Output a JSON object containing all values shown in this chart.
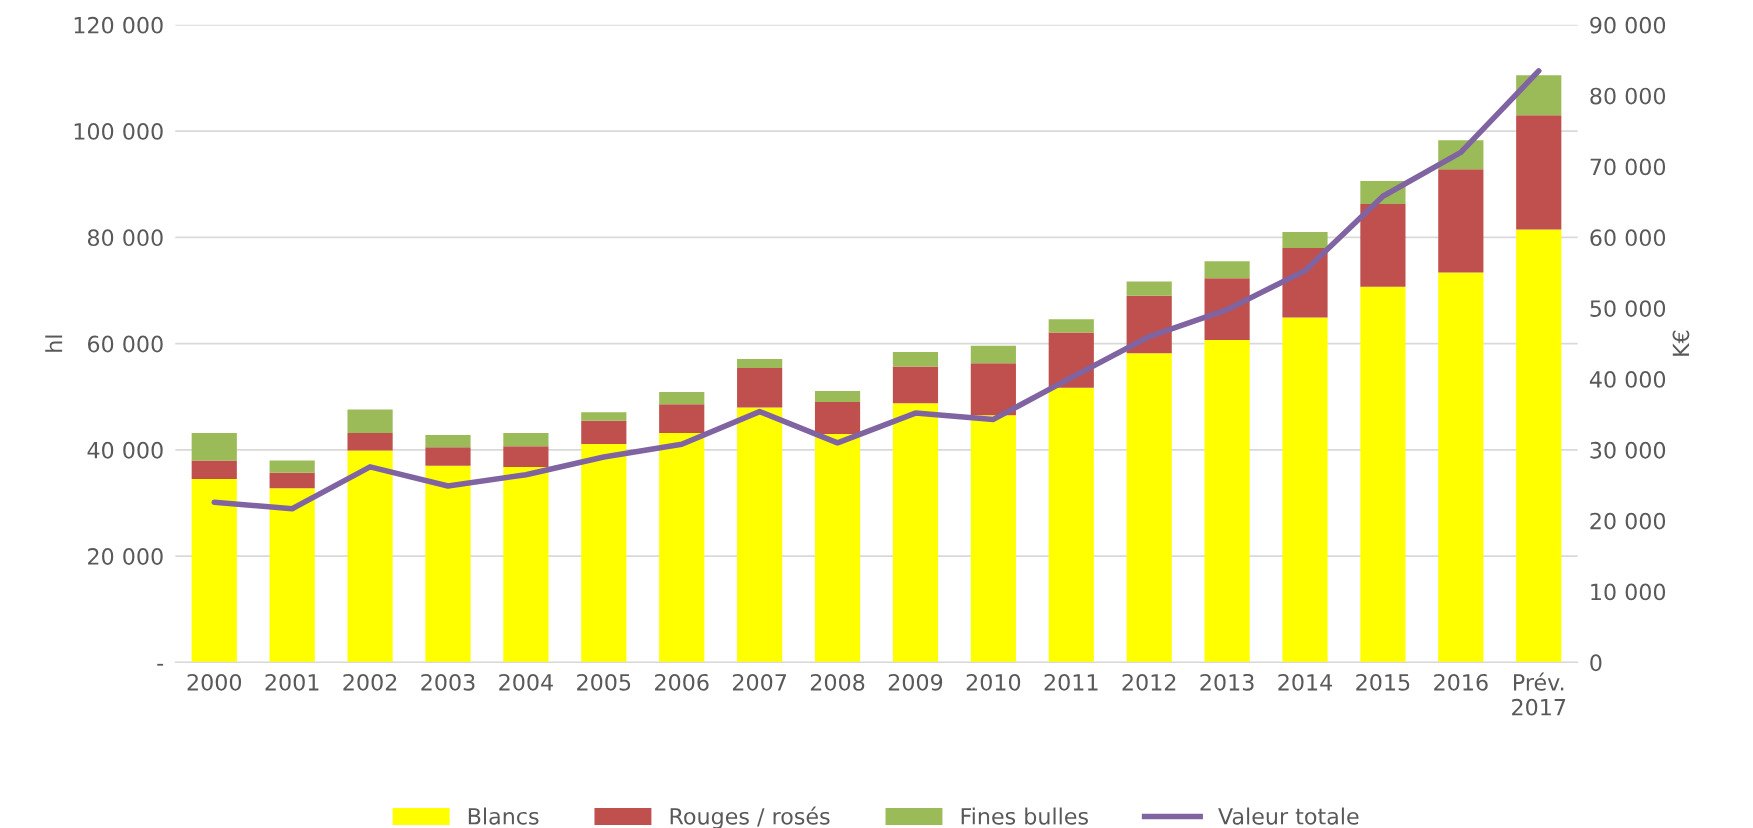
{
  "chart_data": {
    "type": "bar",
    "stacked": true,
    "ylabel": "hl",
    "y2label": "K€",
    "categories": [
      "2000",
      "2001",
      "2002",
      "2003",
      "2004",
      "2005",
      "2006",
      "2007",
      "2008",
      "2009",
      "2010",
      "2011",
      "2012",
      "2013",
      "2014",
      "2015",
      "2016",
      "Prév.\n2017"
    ],
    "series": [
      {
        "name": "Blancs",
        "color": "#ffff00",
        "values": [
          34500,
          32800,
          39900,
          37000,
          36800,
          41100,
          43200,
          48000,
          43000,
          48800,
          46500,
          51700,
          58200,
          60700,
          64900,
          70700,
          73400,
          81500
        ]
      },
      {
        "name": "Rouges / rosés",
        "color": "#c0504d",
        "values": [
          3500,
          2900,
          3300,
          3500,
          3900,
          4400,
          5400,
          7400,
          6000,
          6900,
          9800,
          10400,
          10800,
          11600,
          13100,
          15600,
          19400,
          21500
        ]
      },
      {
        "name": "Fines bulles",
        "color": "#9bbb59",
        "values": [
          5200,
          2300,
          4400,
          2300,
          2500,
          1600,
          2300,
          1700,
          2100,
          2700,
          3300,
          2500,
          2700,
          3200,
          3000,
          4300,
          5500,
          7500
        ]
      },
      {
        "name": "Valeur totale",
        "type": "line",
        "axis": "y2",
        "color": "#8064a2",
        "values": [
          22600,
          21700,
          27600,
          24900,
          26500,
          29000,
          30800,
          35400,
          31000,
          35200,
          34300,
          40200,
          46000,
          49800,
          55300,
          65800,
          72000,
          83500
        ]
      }
    ],
    "ylim": [
      0,
      120000
    ],
    "yticks": [
      {
        "value": 0,
        "label": "-"
      },
      {
        "value": 20000,
        "label": "20 000"
      },
      {
        "value": 40000,
        "label": "40 000"
      },
      {
        "value": 60000,
        "label": "60 000"
      },
      {
        "value": 80000,
        "label": "80 000"
      },
      {
        "value": 100000,
        "label": "100 000"
      },
      {
        "value": 120000,
        "label": "120 000"
      }
    ],
    "y2lim": [
      0,
      90000
    ],
    "y2ticks": [
      0,
      {
        "value": 10000,
        "label": "10 000"
      },
      {
        "value": 20000,
        "label": "20 000"
      },
      {
        "value": 30000,
        "label": "30 000"
      },
      {
        "value": 40000,
        "label": "40 000"
      },
      {
        "value": 50000,
        "label": "50 000"
      },
      {
        "value": 60000,
        "label": "60 000"
      },
      {
        "value": 70000,
        "label": "70 000"
      },
      {
        "value": 80000,
        "label": "80 000"
      },
      {
        "value": 90000,
        "label": "90 000"
      }
    ],
    "grid": "y",
    "legend": "bottom"
  }
}
